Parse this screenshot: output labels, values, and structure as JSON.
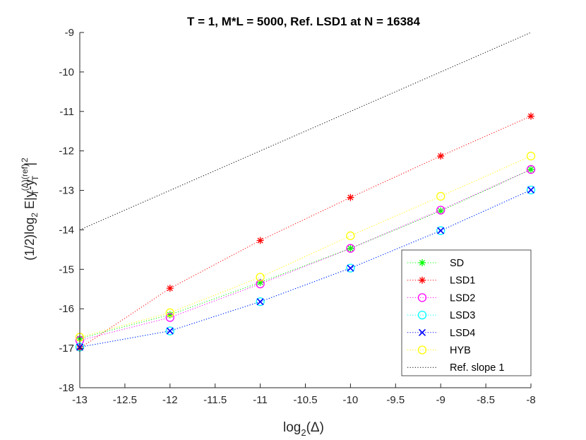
{
  "chart_data": {
    "type": "line",
    "title": "T = 1, M*L  = 5000, Ref. LSD1 at N = 16384",
    "xlabel": {
      "base": "log",
      "sub": "2",
      "rest": "(Δ)"
    },
    "ylabel": {
      "p1": "(1/2)log",
      "sub2": "2",
      "p2": " E|y",
      "sup_delta": "(Δ)",
      "sub_t1": "T",
      "p3": "-y",
      "sup_ref": "(ref)",
      "sub_t2": "T",
      "p4": "|",
      "sup_2": "2"
    },
    "xlim": [
      -13,
      -8
    ],
    "ylim": [
      -18,
      -9
    ],
    "xticks": [
      -13,
      -12.5,
      -12,
      -11.5,
      -11,
      -10.5,
      -10,
      -9.5,
      -9,
      -8.5,
      -8
    ],
    "yticks": [
      -18,
      -17,
      -16,
      -15,
      -14,
      -13,
      -12,
      -11,
      -10,
      -9
    ],
    "x": [
      -13,
      -12,
      -11,
      -10,
      -9,
      -8
    ],
    "series": [
      {
        "name": "SD",
        "color": "#00ff00",
        "marker": "asterisk",
        "values": [
          -16.75,
          -16.15,
          -15.33,
          -14.47,
          -13.52,
          -12.47
        ]
      },
      {
        "name": "LSD1",
        "color": "#ff0000",
        "marker": "asterisk",
        "values": [
          -17.0,
          -15.48,
          -14.27,
          -13.18,
          -12.13,
          -11.12
        ]
      },
      {
        "name": "LSD2",
        "color": "#ff00ff",
        "marker": "circle",
        "values": [
          -16.8,
          -16.22,
          -15.37,
          -14.47,
          -13.5,
          -12.47
        ]
      },
      {
        "name": "LSD3",
        "color": "#00ffff",
        "marker": "circle",
        "values": [
          -16.97,
          -16.56,
          -15.82,
          -14.97,
          -14.02,
          -12.99
        ]
      },
      {
        "name": "LSD4",
        "color": "#0000ff",
        "marker": "cross",
        "values": [
          -16.97,
          -16.56,
          -15.82,
          -14.97,
          -14.02,
          -12.99
        ]
      },
      {
        "name": "HYB",
        "color": "#ffff00",
        "marker": "circle",
        "values": [
          -16.72,
          -16.1,
          -15.2,
          -14.15,
          -13.15,
          -12.13
        ]
      },
      {
        "name": "Ref. slope 1",
        "color": "#000000",
        "marker": "none",
        "x": [
          -13,
          -8
        ],
        "values": [
          -14,
          -9
        ]
      }
    ],
    "legend_position": "bottom-right",
    "grid": false
  }
}
